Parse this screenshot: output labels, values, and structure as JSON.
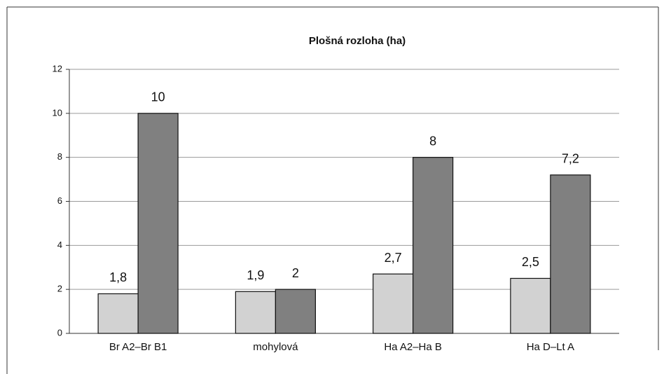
{
  "chart_data": {
    "type": "bar",
    "title": "Plošná rozloha (ha)",
    "categories": [
      "Br A2–Br B1",
      "mohylová",
      "Ha A2–Ha B",
      "Ha D–Lt A"
    ],
    "series": [
      {
        "color": "#d2d2d2",
        "values": [
          1.8,
          1.9,
          2.7,
          2.5
        ],
        "value_labels": [
          "1,8",
          "1,9",
          "2,7",
          "2,5"
        ]
      },
      {
        "color": "#808080",
        "values": [
          10,
          2,
          8,
          7.2
        ],
        "value_labels": [
          "10",
          "2",
          "8",
          "7,2"
        ]
      }
    ],
    "ylim": [
      0,
      12
    ],
    "yticks": [
      0,
      2,
      4,
      6,
      8,
      10,
      12
    ],
    "grid": true
  }
}
